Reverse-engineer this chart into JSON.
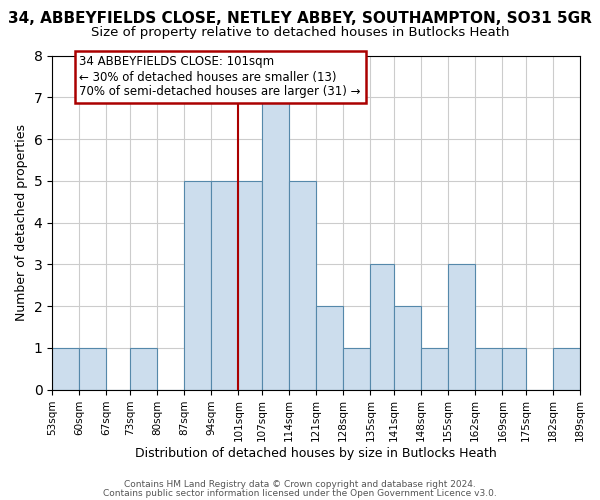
{
  "title": "34, ABBEYFIELDS CLOSE, NETLEY ABBEY, SOUTHAMPTON, SO31 5GR",
  "subtitle": "Size of property relative to detached houses in Butlocks Heath",
  "xlabel": "Distribution of detached houses by size in Butlocks Heath",
  "ylabel": "Number of detached properties",
  "bin_edges": [
    53,
    60,
    67,
    73,
    80,
    87,
    94,
    101,
    107,
    114,
    121,
    128,
    135,
    141,
    148,
    155,
    162,
    169,
    175,
    182,
    189
  ],
  "counts": [
    1,
    1,
    0,
    1,
    0,
    5,
    5,
    5,
    7,
    5,
    2,
    1,
    3,
    2,
    1,
    3,
    1,
    1,
    0,
    1
  ],
  "bar_color": "#ccdded",
  "bar_edgecolor": "#5588aa",
  "red_line_x": 101,
  "ylim": [
    0,
    8
  ],
  "yticks": [
    0,
    1,
    2,
    3,
    4,
    5,
    6,
    7,
    8
  ],
  "annotation_line1": "34 ABBEYFIELDS CLOSE: 101sqm",
  "annotation_line2": "← 30% of detached houses are smaller (13)",
  "annotation_line3": "70% of semi-detached houses are larger (31) →",
  "annotation_box_edgecolor": "#aa0000",
  "footer1": "Contains HM Land Registry data © Crown copyright and database right 2024.",
  "footer2": "Contains public sector information licensed under the Open Government Licence v3.0.",
  "background_color": "#ffffff",
  "grid_color": "#cccccc",
  "title_fontsize": 11,
  "subtitle_fontsize": 9.5
}
